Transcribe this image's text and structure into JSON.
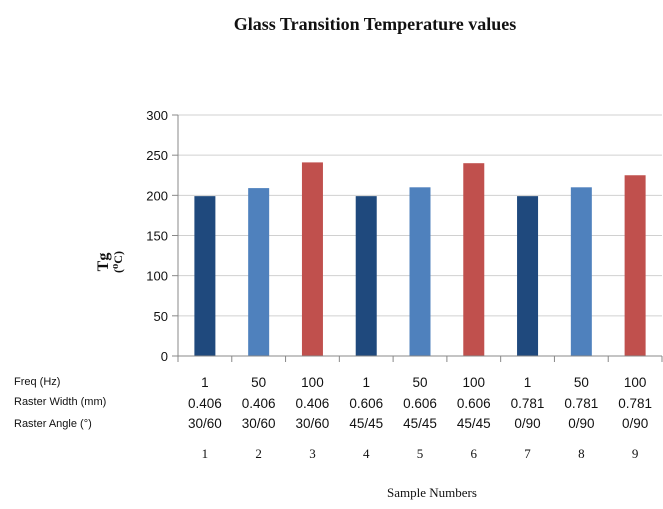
{
  "chart_data": {
    "type": "bar",
    "title": "Glass Transition Temperature values",
    "ylabel_main": "Tg",
    "ylabel_unit": "(⁰C)",
    "xlabel": "Sample Numbers",
    "ylim": [
      0,
      300
    ],
    "yticks": [
      "0",
      "50",
      "100",
      "150",
      "200",
      "250",
      "300"
    ],
    "row_labels": [
      "Freq (Hz)",
      "Raster Width (mm)",
      "Raster Angle (°)"
    ],
    "categories": [
      {
        "freq": "1",
        "width": "0.406",
        "angle": "30/60",
        "sample": "1"
      },
      {
        "freq": "50",
        "width": "0.406",
        "angle": "30/60",
        "sample": "2"
      },
      {
        "freq": "100",
        "width": "0.406",
        "angle": "30/60",
        "sample": "3"
      },
      {
        "freq": "1",
        "width": "0.606",
        "angle": "45/45",
        "sample": "4"
      },
      {
        "freq": "50",
        "width": "0.606",
        "angle": "45/45",
        "sample": "5"
      },
      {
        "freq": "100",
        "width": "0.606",
        "angle": "45/45",
        "sample": "6"
      },
      {
        "freq": "1",
        "width": "0.781",
        "angle": "0/90",
        "sample": "7"
      },
      {
        "freq": "50",
        "width": "0.781",
        "angle": "0/90",
        "sample": "8"
      },
      {
        "freq": "100",
        "width": "0.781",
        "angle": "0/90",
        "sample": "9"
      }
    ],
    "values": [
      199,
      209,
      241,
      199,
      210,
      240,
      199,
      210,
      225
    ],
    "bar_colors": [
      "#1f497d",
      "#4f81bd",
      "#c0504d",
      "#1f497d",
      "#4f81bd",
      "#c0504d",
      "#1f497d",
      "#4f81bd",
      "#c0504d"
    ],
    "gridlines": true,
    "legend": "none"
  }
}
